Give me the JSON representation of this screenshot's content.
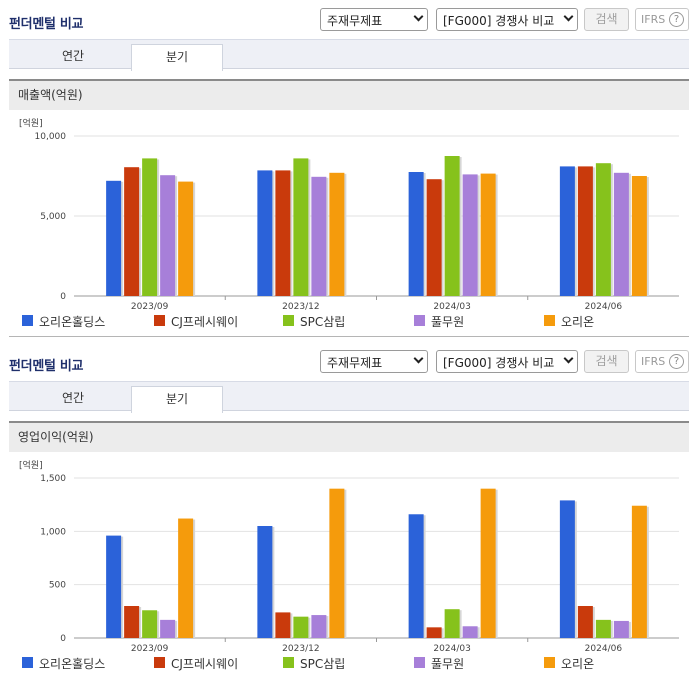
{
  "panels": [
    {
      "title": "펀더멘털 비교",
      "select_financial": "주재무제표",
      "select_compare": "[FG000] 경쟁사 비교",
      "search_label": "검색",
      "ifrs_label": "IFRS",
      "help_label": "?",
      "tabs": [
        "연간",
        "분기"
      ],
      "active_tab": "분기",
      "section_title": "매출액(억원)",
      "chart_data": {
        "type": "bar",
        "unit_label": "[억원]",
        "categories": [
          "2023/09",
          "2023/12",
          "2024/03",
          "2024/06"
        ],
        "ylim": [
          0,
          10000
        ],
        "yticks": [
          "0",
          "5,000",
          "10,000"
        ],
        "ytick_values": [
          0,
          5000,
          10000
        ],
        "series": [
          {
            "name": "오리온홀딩스",
            "color": "#2b62d9",
            "values": [
              7200,
              7850,
              7750,
              8100
            ]
          },
          {
            "name": "CJ프레시웨이",
            "color": "#c93a0c",
            "values": [
              8050,
              7850,
              7300,
              8100
            ]
          },
          {
            "name": "SPC삼립",
            "color": "#86c21c",
            "values": [
              8600,
              8600,
              8750,
              8300
            ]
          },
          {
            "name": "풀무원",
            "color": "#a77fd9",
            "values": [
              7550,
              7450,
              7600,
              7700
            ]
          },
          {
            "name": "오리온",
            "color": "#f59b0c",
            "values": [
              7150,
              7700,
              7650,
              7500
            ]
          }
        ]
      }
    },
    {
      "title": "펀더멘털 비교",
      "select_financial": "주재무제표",
      "select_compare": "[FG000] 경쟁사 비교",
      "search_label": "검색",
      "ifrs_label": "IFRS",
      "help_label": "?",
      "tabs": [
        "연간",
        "분기"
      ],
      "active_tab": "분기",
      "section_title": "영업이익(억원)",
      "chart_data": {
        "type": "bar",
        "unit_label": "[억원]",
        "categories": [
          "2023/09",
          "2023/12",
          "2024/03",
          "2024/06"
        ],
        "ylim": [
          0,
          1500
        ],
        "yticks": [
          "0",
          "500",
          "1,000",
          "1,500"
        ],
        "ytick_values": [
          0,
          500,
          1000,
          1500
        ],
        "series": [
          {
            "name": "오리온홀딩스",
            "color": "#2b62d9",
            "values": [
              960,
              1050,
              1160,
              1290
            ]
          },
          {
            "name": "CJ프레시웨이",
            "color": "#c93a0c",
            "values": [
              300,
              240,
              100,
              300
            ]
          },
          {
            "name": "SPC삼립",
            "color": "#86c21c",
            "values": [
              260,
              200,
              270,
              170
            ]
          },
          {
            "name": "풀무원",
            "color": "#a77fd9",
            "values": [
              170,
              215,
              110,
              160
            ]
          },
          {
            "name": "오리온",
            "color": "#f59b0c",
            "values": [
              1120,
              1400,
              1400,
              1240
            ]
          }
        ]
      }
    }
  ]
}
